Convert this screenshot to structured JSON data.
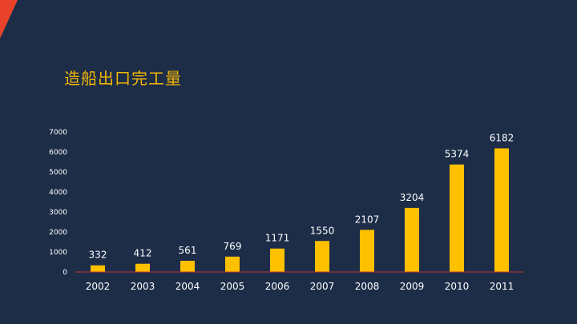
{
  "slide": {
    "title": "造船出口完工量",
    "accent_color": "#e8432a",
    "title_color": "#f5b800",
    "background_color": "#1d2d48"
  },
  "chart_data": {
    "type": "bar",
    "title": "造船出口完工量",
    "xlabel": "",
    "ylabel": "",
    "categories": [
      "2002",
      "2003",
      "2004",
      "2005",
      "2006",
      "2007",
      "2008",
      "2009",
      "2010",
      "2011"
    ],
    "values": [
      332,
      412,
      561,
      769,
      1171,
      1550,
      2107,
      3204,
      5374,
      6182
    ],
    "ylim": [
      0,
      7000
    ],
    "yticks": [
      0,
      1000,
      2000,
      3000,
      4000,
      5000,
      6000,
      7000
    ],
    "grid": false,
    "legend": "none",
    "bar_color": "#ffc000",
    "axis_color": "#c0392b",
    "show_data_labels": true
  }
}
